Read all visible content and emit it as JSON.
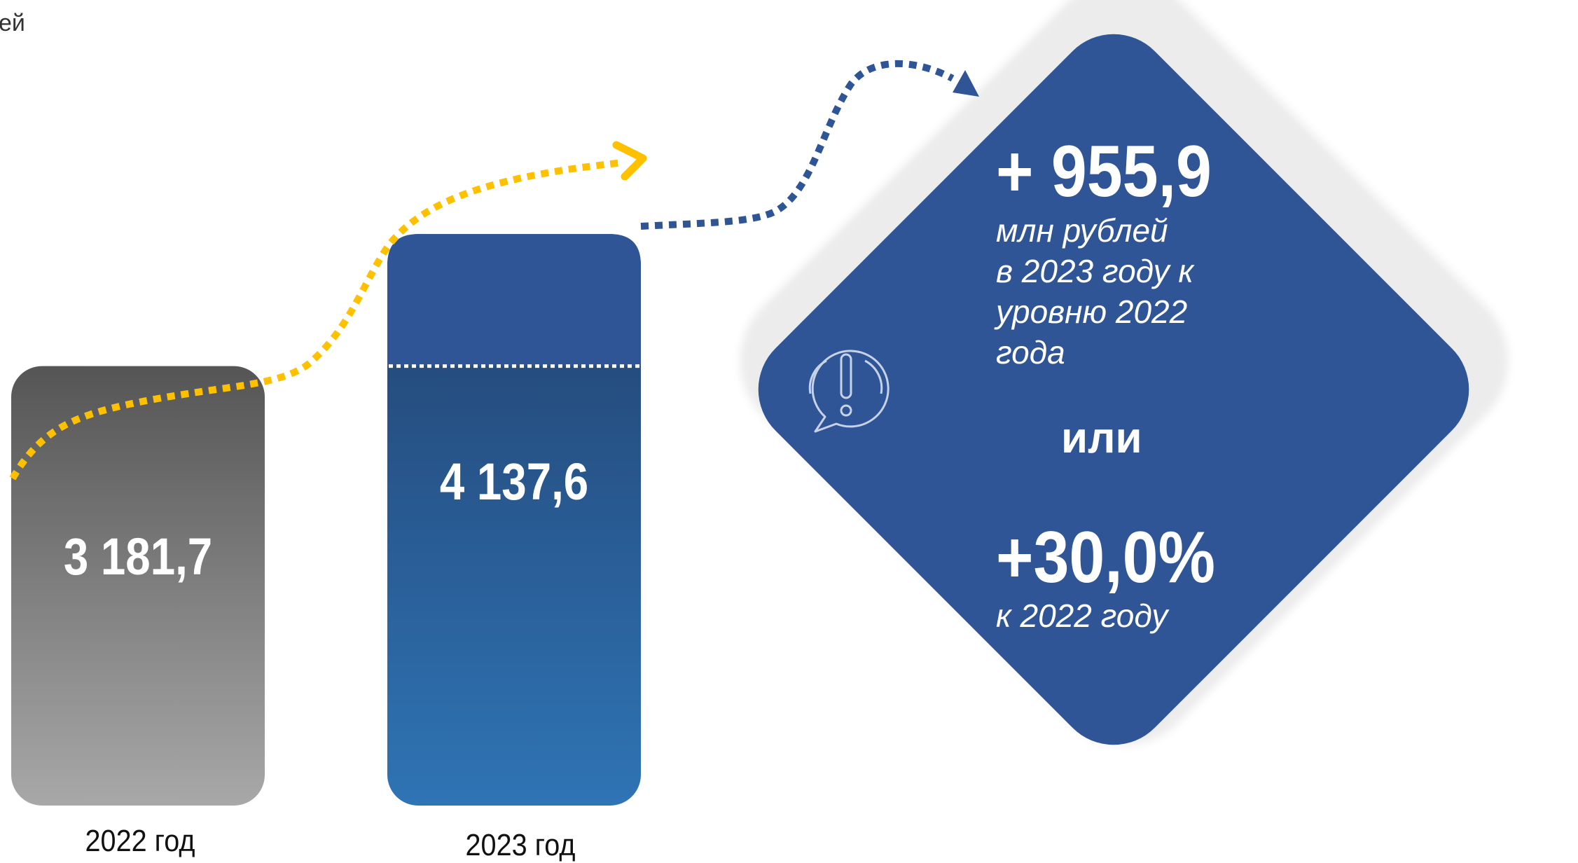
{
  "header": {
    "unit_fragment": "ей"
  },
  "chart_data": {
    "type": "bar",
    "categories": [
      "2022 год",
      "2023 год"
    ],
    "values": [
      3181.7,
      4137.6
    ],
    "value_labels": [
      "3 181,7",
      "4 137,6"
    ],
    "title": "",
    "xlabel": "",
    "ylabel": "",
    "ylim": [
      0,
      4500
    ],
    "grid": false,
    "bar_colors": {
      "2022": [
        "#555555",
        "#a8a8a8"
      ],
      "2023": [
        "#22416f",
        "#2f74b5"
      ],
      "top_segment": "#2f5597"
    },
    "arrow_colors": {
      "trend": "#ffc000",
      "callout": "#2f5597"
    }
  },
  "callout": {
    "delta_value": "+ 955,9",
    "delta_text_lines": [
      "млн рублей",
      "в 2023 году к",
      "уровню 2022",
      "года"
    ],
    "or_word": "или",
    "percent_value": "+30,0%",
    "percent_text": "к 2022 году",
    "icon": "exclamation-speech-bubble-icon",
    "colors": {
      "diamond": "#2f5597",
      "shadow": "#ededed"
    }
  }
}
